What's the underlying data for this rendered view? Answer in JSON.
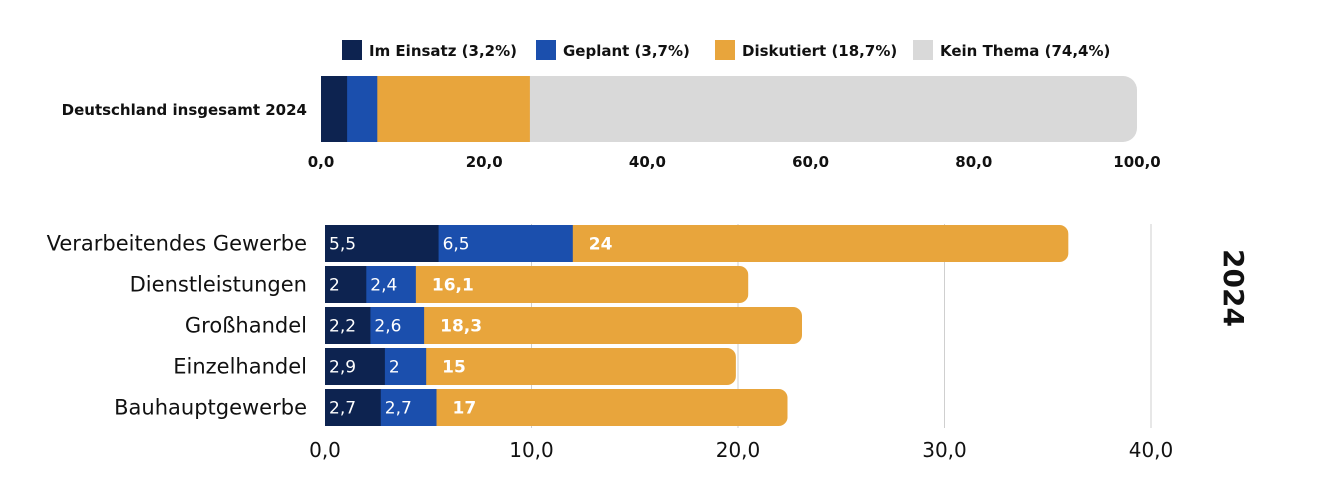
{
  "chart_data": [
    {
      "type": "bar",
      "orientation": "horizontal",
      "stacked": true,
      "categories": [
        "Deutschland insgesamt 2024"
      ],
      "series": [
        {
          "name": "Im Einsatz (3,2%)",
          "values": [
            3.2
          ],
          "color": "#0d2350"
        },
        {
          "name": "Geplant (3,7%)",
          "values": [
            3.7
          ],
          "color": "#1b4fad"
        },
        {
          "name": "Diskutiert (18,7%)",
          "values": [
            18.7
          ],
          "color": "#e8a53c"
        },
        {
          "name": "Kein Thema (74,4%)",
          "values": [
            74.4
          ],
          "color": "#d9d9d9"
        }
      ],
      "xlim": [
        0,
        100
      ],
      "xticks": [
        "0,0",
        "20,0",
        "40,0",
        "60,0",
        "80,0",
        "100,0"
      ],
      "legend": "top",
      "grid": false
    },
    {
      "type": "bar",
      "orientation": "horizontal",
      "stacked": true,
      "side_label": "2024",
      "categories": [
        "Verarbeitendes Gewerbe",
        "Dienstleistungen",
        "Großhandel",
        "Einzelhandel",
        "Bauhauptgewerbe"
      ],
      "series": [
        {
          "key": "einsatz",
          "values": [
            5.5,
            2,
            2.2,
            2.9,
            2.7
          ],
          "labels": [
            "5,5",
            "2",
            "2,2",
            "2,9",
            "2,7"
          ],
          "color": "#0d2350"
        },
        {
          "key": "geplant",
          "values": [
            6.5,
            2.4,
            2.6,
            2,
            2.7
          ],
          "labels": [
            "6,5",
            "2,4",
            "2,6",
            "2",
            "2,7"
          ],
          "color": "#1b4fad"
        },
        {
          "key": "diskutiert",
          "values": [
            24,
            16.1,
            18.3,
            15,
            17
          ],
          "labels": [
            "24",
            "16,1",
            "18,3",
            "15",
            "17"
          ],
          "color": "#e8a53c"
        }
      ],
      "xlim": [
        0,
        40
      ],
      "xticks": [
        "0,0",
        "10,0",
        "20,0",
        "30,0",
        "40,0"
      ],
      "grid": true
    }
  ]
}
